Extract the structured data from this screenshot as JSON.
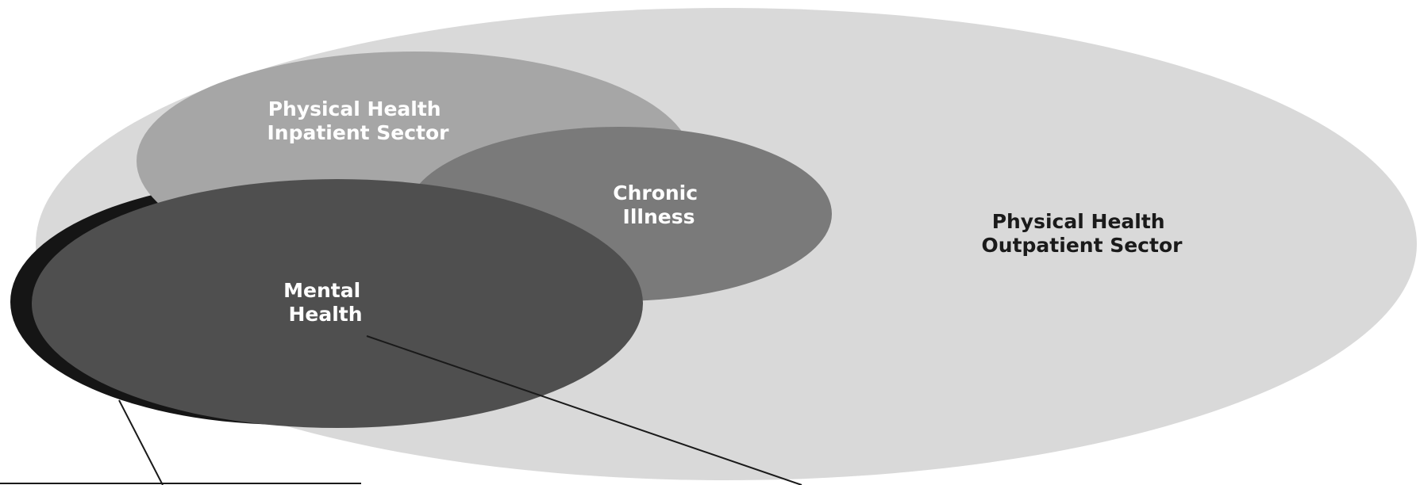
{
  "colors": {
    "background": "#ffffff",
    "outpatient_fill": "#d9d9d9",
    "inpatient_fill": "#a6a6a6",
    "chronic_fill": "#7a7a7a",
    "mental_fill": "#4f4f4f",
    "shadow_fill": "#151515",
    "line_color": "#1a1a1a"
  },
  "regions": {
    "outpatient": {
      "line1": "Physical Health",
      "line2": "Outpatient Sector"
    },
    "inpatient": {
      "line1": "Physical Health",
      "line2": "Inpatient Sector"
    },
    "chronic": {
      "line1": "Chronic",
      "line2": "Illness"
    },
    "mental": {
      "line1": "Mental",
      "line2": "Health"
    }
  }
}
